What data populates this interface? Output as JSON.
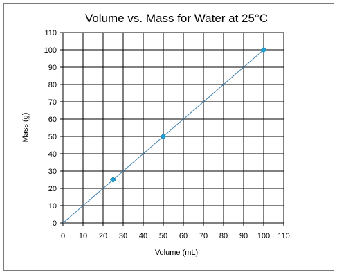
{
  "chart_data": {
    "type": "scatter",
    "title": "Volume vs. Mass for Water at 25°C",
    "xlabel": "Volume (mL)",
    "ylabel": "Mass (g)",
    "xlim": [
      0,
      110
    ],
    "ylim": [
      0,
      110
    ],
    "xticks": [
      0,
      10,
      20,
      30,
      40,
      50,
      60,
      70,
      80,
      90,
      100,
      110
    ],
    "yticks": [
      0,
      10,
      20,
      30,
      40,
      50,
      60,
      70,
      80,
      90,
      100,
      110
    ],
    "grid": true,
    "legend": "none",
    "series": [
      {
        "points": [
          {
            "x": 25,
            "y": 25
          },
          {
            "x": 50,
            "y": 50
          },
          {
            "x": 100,
            "y": 100
          }
        ],
        "marker": "diamond",
        "color": "#1fa3d6"
      }
    ],
    "trendline": {
      "from": {
        "x": 0,
        "y": 0
      },
      "to": {
        "x": 100,
        "y": 100
      },
      "color": "#3b7fb0"
    }
  }
}
